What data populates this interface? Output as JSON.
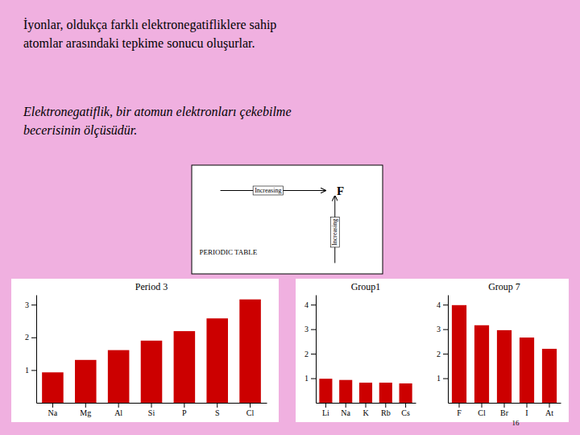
{
  "annotations": [
    "İyonlar, oldukça farklı elektronegatifliklere sahip\natomlar arasındaki tepkime sonucu oluşurlar.",
    "Elektronegatiflik, bir atomun elektronları çekebilme\nbecerisinin ölçüsüdür.",
    "Increasing",
    "F",
    "Increasing",
    "PERIODIC TABLE"
  ],
  "chart_data": [
    {
      "type": "bar",
      "title": "Period 3",
      "categories": [
        "Na",
        "Mg",
        "Al",
        "Si",
        "P",
        "S",
        "Cl"
      ],
      "values": [
        0.93,
        1.31,
        1.61,
        1.9,
        2.19,
        2.58,
        3.16
      ],
      "color": "#cc0000",
      "ylim": [
        0,
        3.3
      ],
      "yticks": [
        1,
        2,
        3
      ]
    },
    {
      "type": "bar",
      "title": "Group1",
      "categories": [
        "Li",
        "Na",
        "K",
        "Rb",
        "Cs"
      ],
      "values": [
        0.98,
        0.93,
        0.82,
        0.82,
        0.79
      ],
      "color": "#cc0000",
      "ylim": [
        0,
        4.4
      ],
      "yticks": [
        1,
        2,
        3,
        4
      ]
    },
    {
      "type": "bar",
      "title": "Group 7",
      "categories": [
        "F",
        "Cl",
        "Br",
        "I",
        "At"
      ],
      "values": [
        3.98,
        3.16,
        2.96,
        2.66,
        2.2
      ],
      "color": "#cc0000",
      "ylim": [
        0,
        4.4
      ],
      "yticks": [
        1,
        2,
        3,
        4
      ],
      "annotations": [
        "16"
      ]
    }
  ]
}
